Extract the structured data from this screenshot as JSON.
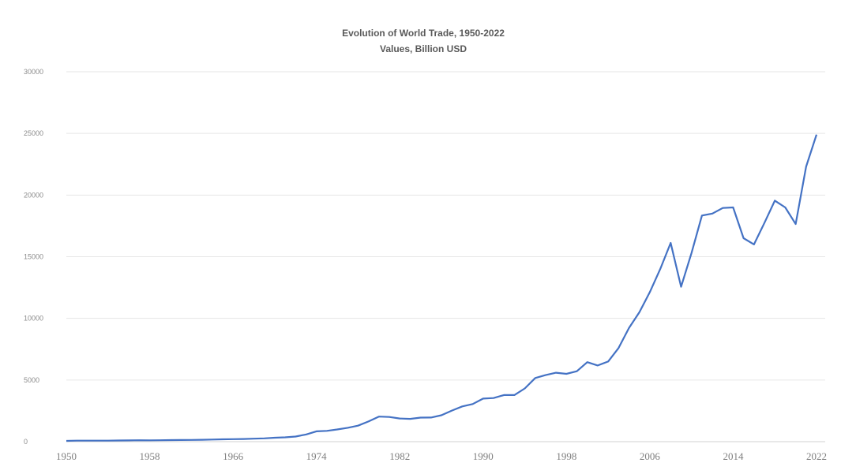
{
  "chart_data": {
    "type": "line",
    "title": "Evolution of World Trade, 1950-2022",
    "subtitle": "Values, Billion USD",
    "xlabel": "",
    "ylabel": "",
    "ylim": [
      0,
      30000
    ],
    "xlim": [
      1950,
      2022
    ],
    "yticks": [
      "0",
      "5000",
      "10000",
      "15000",
      "20000",
      "25000",
      "30000"
    ],
    "xticks": [
      "1950",
      "1958",
      "1966",
      "1974",
      "1982",
      "1990",
      "1998",
      "2006",
      "2014",
      "2022"
    ],
    "grid": true,
    "legend": "none",
    "series": [
      {
        "color": "#4472c4",
        "x": [
          1950,
          1951,
          1952,
          1953,
          1954,
          1955,
          1956,
          1957,
          1958,
          1959,
          1960,
          1961,
          1962,
          1963,
          1964,
          1965,
          1966,
          1967,
          1968,
          1969,
          1970,
          1971,
          1972,
          1973,
          1974,
          1975,
          1976,
          1977,
          1978,
          1979,
          1980,
          1981,
          1982,
          1983,
          1984,
          1985,
          1986,
          1987,
          1988,
          1989,
          1990,
          1991,
          1992,
          1993,
          1994,
          1995,
          1996,
          1997,
          1998,
          1999,
          2000,
          2001,
          2002,
          2003,
          2004,
          2005,
          2006,
          2007,
          2008,
          2009,
          2010,
          2011,
          2012,
          2013,
          2014,
          2015,
          2016,
          2017,
          2018,
          2019,
          2020,
          2021,
          2022
        ],
        "values": [
          62,
          83,
          80,
          84,
          86,
          95,
          103,
          112,
          108,
          116,
          130,
          135,
          142,
          155,
          175,
          190,
          205,
          215,
          240,
          270,
          317,
          350,
          415,
          580,
          840,
          875,
          990,
          1125,
          1300,
          1640,
          2035,
          2000,
          1880,
          1850,
          1950,
          1960,
          2140,
          2520,
          2860,
          3050,
          3490,
          3540,
          3780,
          3780,
          4320,
          5160,
          5400,
          5590,
          5500,
          5710,
          6450,
          6180,
          6500,
          7590,
          9220,
          10500,
          12130,
          14000,
          16120,
          12560,
          15300,
          18340,
          18500,
          18950,
          19000,
          16500,
          16000,
          17740,
          19550,
          19000,
          17650,
          22300,
          24900
        ]
      }
    ]
  }
}
